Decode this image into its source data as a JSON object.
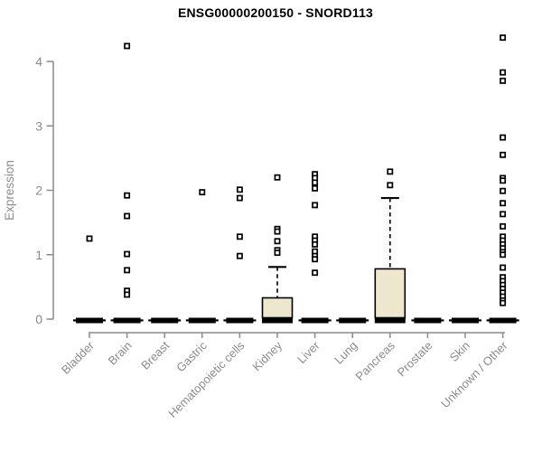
{
  "title": "ENSG00000200150 - SNORD113",
  "colors": {
    "box_fill": "#EDE8CD",
    "box_stroke": "#000000",
    "axis": "#8b8b8b",
    "label_text": "#8b8b8b",
    "title_text": "#000000",
    "outlier_fill": "#ffffff",
    "background": "#ffffff"
  },
  "chart_data": {
    "type": "boxplot",
    "title": "ENSG00000200150 - SNORD113",
    "xlabel": "",
    "ylabel": "Expression",
    "ylim": [
      0,
      4.4
    ],
    "yticks": [
      0,
      1,
      2,
      3,
      4
    ],
    "grid": false,
    "legend": "none",
    "categories": [
      "Bladder",
      "Brain",
      "Breast",
      "Gastric",
      "Hematopoietic cells",
      "Kidney",
      "Liver",
      "Lung",
      "Pancreas",
      "Prostate",
      "Skin",
      "Unknown / Other"
    ],
    "series": [
      {
        "category": "Bladder",
        "median": 0,
        "q1": 0,
        "q3": 0,
        "whisker_low": 0,
        "whisker_high": 0,
        "outliers": [
          1.25
        ]
      },
      {
        "category": "Brain",
        "median": 0,
        "q1": 0,
        "q3": 0,
        "whisker_low": 0,
        "whisker_high": 0,
        "outliers": [
          4.24,
          1.92,
          1.6,
          1.01,
          0.76,
          0.44,
          0.38
        ]
      },
      {
        "category": "Breast",
        "median": 0,
        "q1": 0,
        "q3": 0,
        "whisker_low": 0,
        "whisker_high": 0,
        "outliers": []
      },
      {
        "category": "Gastric",
        "median": 0,
        "q1": 0,
        "q3": 0,
        "whisker_low": 0,
        "whisker_high": 0,
        "outliers": [
          1.97
        ]
      },
      {
        "category": "Hematopoietic cells",
        "median": 0,
        "q1": 0,
        "q3": 0,
        "whisker_low": 0,
        "whisker_high": 0,
        "outliers": [
          2.01,
          1.88,
          1.28,
          0.98
        ]
      },
      {
        "category": "Kidney",
        "median": 0,
        "q1": 0,
        "q3": 0.33,
        "whisker_low": 0,
        "whisker_high": 0.81,
        "outliers": [
          2.2,
          1.4,
          1.36,
          1.21,
          1.07,
          1.03
        ]
      },
      {
        "category": "Liver",
        "median": 0,
        "q1": 0,
        "q3": 0,
        "whisker_low": 0,
        "whisker_high": 0,
        "outliers": [
          2.25,
          2.19,
          2.12,
          2.03,
          1.77,
          1.28,
          1.22,
          1.16,
          1.05,
          0.98,
          0.93,
          0.72
        ]
      },
      {
        "category": "Lung",
        "median": 0,
        "q1": 0,
        "q3": 0,
        "whisker_low": 0,
        "whisker_high": 0,
        "outliers": []
      },
      {
        "category": "Pancreas",
        "median": 0,
        "q1": 0,
        "q3": 0.78,
        "whisker_low": 0,
        "whisker_high": 1.88,
        "outliers": [
          2.29,
          2.08
        ]
      },
      {
        "category": "Prostate",
        "median": 0,
        "q1": 0,
        "q3": 0,
        "whisker_low": 0,
        "whisker_high": 0,
        "outliers": []
      },
      {
        "category": "Skin",
        "median": 0,
        "q1": 0,
        "q3": 0,
        "whisker_low": 0,
        "whisker_high": 0,
        "outliers": []
      },
      {
        "category": "Unknown / Other",
        "median": 0,
        "q1": 0,
        "q3": 0,
        "whisker_low": 0,
        "whisker_high": 0,
        "outliers": [
          4.37,
          3.83,
          3.7,
          2.82,
          2.55,
          2.19,
          2.15,
          1.99,
          1.8,
          1.63,
          1.44,
          1.28,
          1.22,
          1.16,
          1.1,
          1.04,
          1.0,
          0.8,
          0.65,
          0.59,
          0.53,
          0.47,
          0.41,
          0.35,
          0.29,
          0.25
        ]
      }
    ]
  }
}
